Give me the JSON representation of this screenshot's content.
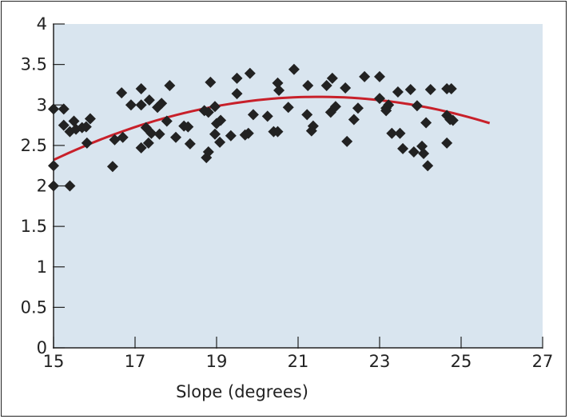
{
  "chart_data": {
    "type": "scatter",
    "title": "",
    "xlabel": "Slope (degrees)",
    "ylabel": "",
    "xlim": [
      15,
      27
    ],
    "ylim": [
      0,
      4
    ],
    "xticks": [
      "15",
      "17",
      "19",
      "21",
      "23",
      "25",
      "27"
    ],
    "yticks": [
      "0",
      "0.5",
      "1",
      "1.5",
      "2",
      "2.5",
      "3",
      "3.5",
      "4"
    ],
    "grid": false,
    "colors": {
      "background": "#d9e5ef",
      "points": "#222222",
      "trendline": "#c8202a"
    },
    "points": [
      [
        15.0,
        2.0
      ],
      [
        15.4,
        2.0
      ],
      [
        15.0,
        2.25
      ],
      [
        15.0,
        2.95
      ],
      [
        15.25,
        2.95
      ],
      [
        15.25,
        2.75
      ],
      [
        15.5,
        2.8
      ],
      [
        15.4,
        2.67
      ],
      [
        15.55,
        2.7
      ],
      [
        15.7,
        2.72
      ],
      [
        15.8,
        2.73
      ],
      [
        15.9,
        2.83
      ],
      [
        15.82,
        2.53
      ],
      [
        16.45,
        2.24
      ],
      [
        16.67,
        3.15
      ],
      [
        16.5,
        2.57
      ],
      [
        16.7,
        2.6
      ],
      [
        16.9,
        3.0
      ],
      [
        17.15,
        3.2
      ],
      [
        17.15,
        3.0
      ],
      [
        17.35,
        3.06
      ],
      [
        17.15,
        2.47
      ],
      [
        17.33,
        2.53
      ],
      [
        17.27,
        2.72
      ],
      [
        17.4,
        2.65
      ],
      [
        17.6,
        2.64
      ],
      [
        17.55,
        2.97
      ],
      [
        17.65,
        3.02
      ],
      [
        17.85,
        3.24
      ],
      [
        17.78,
        2.8
      ],
      [
        18.0,
        2.6
      ],
      [
        18.2,
        2.74
      ],
      [
        18.3,
        2.73
      ],
      [
        18.35,
        2.52
      ],
      [
        18.85,
        3.28
      ],
      [
        18.7,
        2.93
      ],
      [
        18.8,
        2.91
      ],
      [
        18.96,
        2.98
      ],
      [
        18.75,
        2.35
      ],
      [
        18.8,
        2.42
      ],
      [
        19.0,
        2.77
      ],
      [
        19.1,
        2.81
      ],
      [
        18.96,
        2.64
      ],
      [
        19.08,
        2.54
      ],
      [
        19.35,
        2.62
      ],
      [
        19.5,
        3.33
      ],
      [
        19.5,
        3.14
      ],
      [
        19.82,
        3.39
      ],
      [
        19.78,
        2.65
      ],
      [
        19.7,
        2.63
      ],
      [
        19.9,
        2.88
      ],
      [
        20.25,
        2.86
      ],
      [
        20.4,
        2.67
      ],
      [
        20.5,
        2.67
      ],
      [
        20.5,
        3.27
      ],
      [
        20.53,
        3.18
      ],
      [
        20.76,
        2.97
      ],
      [
        20.9,
        3.44
      ],
      [
        21.24,
        3.24
      ],
      [
        21.22,
        2.88
      ],
      [
        21.37,
        2.74
      ],
      [
        21.33,
        2.68
      ],
      [
        21.7,
        3.24
      ],
      [
        21.84,
        3.33
      ],
      [
        21.8,
        2.91
      ],
      [
        21.92,
        2.98
      ],
      [
        22.16,
        3.21
      ],
      [
        22.2,
        2.55
      ],
      [
        22.37,
        2.82
      ],
      [
        22.47,
        2.96
      ],
      [
        22.63,
        3.35
      ],
      [
        23.0,
        3.35
      ],
      [
        23.0,
        3.08
      ],
      [
        23.16,
        2.96
      ],
      [
        23.22,
        3.0
      ],
      [
        23.16,
        2.93
      ],
      [
        23.3,
        2.65
      ],
      [
        23.5,
        2.65
      ],
      [
        23.45,
        3.16
      ],
      [
        23.57,
        2.46
      ],
      [
        23.76,
        3.19
      ],
      [
        23.84,
        2.42
      ],
      [
        23.92,
        2.99
      ],
      [
        24.04,
        2.49
      ],
      [
        24.08,
        2.4
      ],
      [
        24.18,
        2.25
      ],
      [
        24.14,
        2.78
      ],
      [
        24.25,
        3.19
      ],
      [
        24.65,
        3.2
      ],
      [
        24.76,
        3.2
      ],
      [
        24.65,
        2.87
      ],
      [
        24.73,
        2.82
      ],
      [
        24.8,
        2.81
      ],
      [
        24.65,
        2.53
      ]
    ],
    "trendline": {
      "type": "quadratic",
      "x_range": [
        15,
        25.7
      ],
      "coefficients": [
        -0.01846,
        0.7938,
        -5.433
      ]
    }
  }
}
